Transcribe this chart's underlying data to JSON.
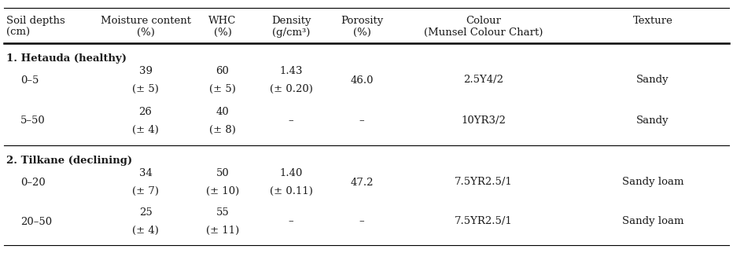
{
  "col_headers": [
    [
      "Soil depths",
      "(cm)"
    ],
    [
      "Moisture content",
      "(%)"
    ],
    [
      "WHC",
      "(%)"
    ],
    [
      "Density",
      "(g/cm³)"
    ],
    [
      "Porosity",
      "(%)"
    ],
    [
      "Colour",
      "(Munsel Colour Chart)"
    ],
    [
      "Texture",
      ""
    ]
  ],
  "section1_label": "1. Hetauda (healthy)",
  "section2_label": "2. Tilkane (declining)",
  "rows": [
    {
      "depth": "0–5",
      "moisture": [
        "39",
        "(± 5)"
      ],
      "whc": [
        "60",
        "(± 5)"
      ],
      "density": [
        "1.43",
        "(± 0.20)"
      ],
      "porosity": "46.0",
      "colour": "2.5Y4/2",
      "texture": "Sandy",
      "section": 1
    },
    {
      "depth": "5–50",
      "moisture": [
        "26",
        "(± 4)"
      ],
      "whc": [
        "40",
        "(± 8)"
      ],
      "density": [
        "–",
        ""
      ],
      "porosity": "–",
      "colour": "10YR3/2",
      "texture": "Sandy",
      "section": 1
    },
    {
      "depth": "0–20",
      "moisture": [
        "34",
        "(± 7)"
      ],
      "whc": [
        "50",
        "(± 10)"
      ],
      "density": [
        "1.40",
        "(± 0.11)"
      ],
      "porosity": "47.2",
      "colour": "7.5YR2.5/1",
      "texture": "Sandy loam",
      "section": 2
    },
    {
      "depth": "20–50",
      "moisture": [
        "25",
        "(± 4)"
      ],
      "whc": [
        "55",
        "(± 11)"
      ],
      "density": [
        "–",
        ""
      ],
      "porosity": "–",
      "colour": "7.5YR2.5/1",
      "texture": "Sandy loam",
      "section": 2
    }
  ],
  "font_size": 9.5,
  "bg_color": "#ffffff",
  "text_color": "#1a1a1a"
}
